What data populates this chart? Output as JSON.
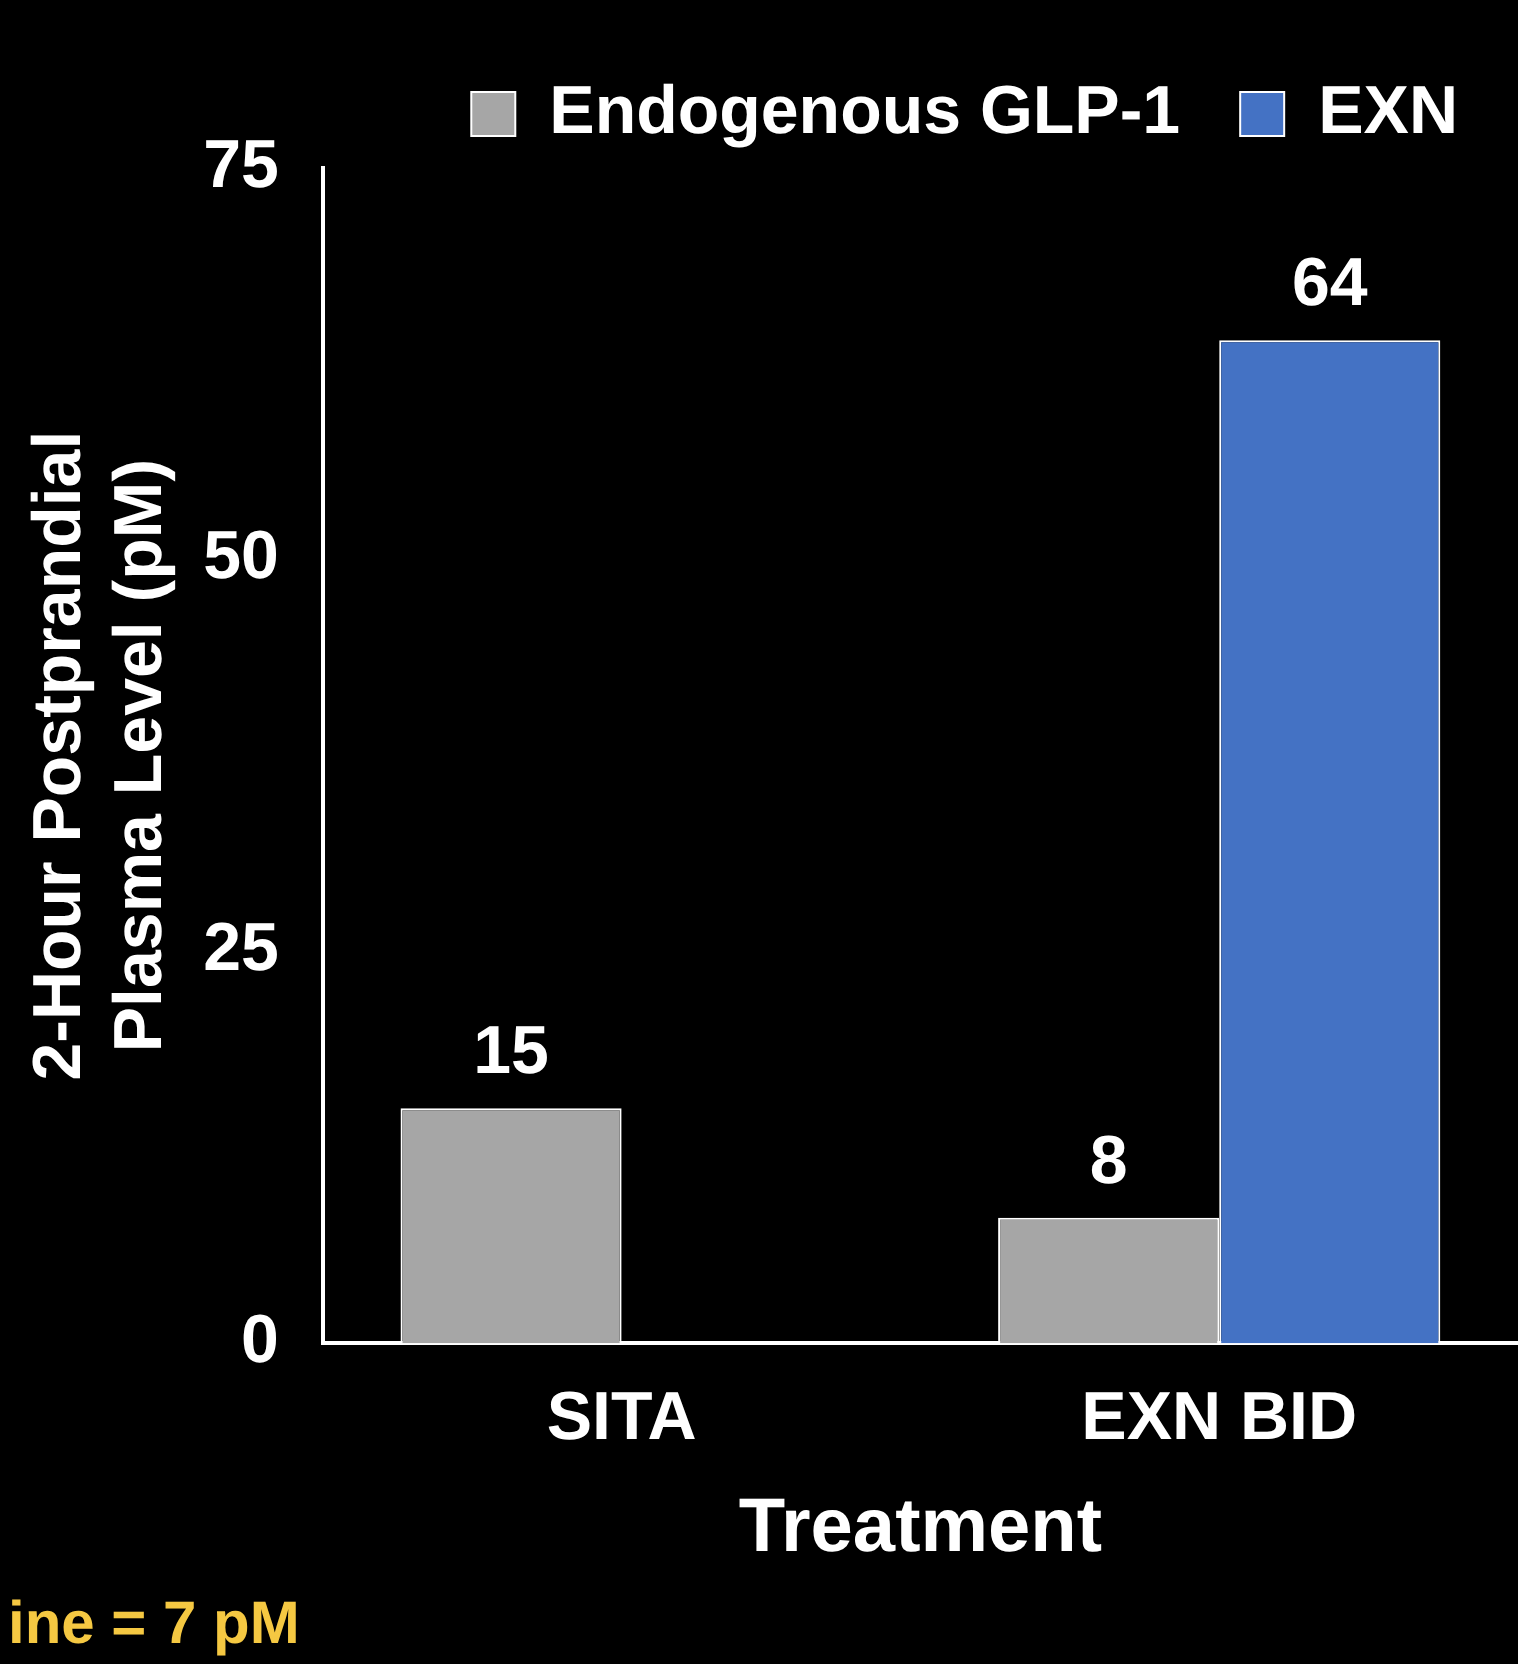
{
  "chart_data": {
    "type": "bar",
    "xlabel": "Treatment",
    "ylabel": "2-Hour Postprandial\nPlasma Level (pM)",
    "categories": [
      "SITA",
      "EXN BID"
    ],
    "series": [
      {
        "name": "Endogenous GLP-1",
        "color": "#a6a6a6",
        "values": [
          15,
          8
        ]
      },
      {
        "name": "EXN",
        "color": "#4472c4",
        "values": [
          null,
          64
        ]
      }
    ],
    "ylim": [
      0,
      75
    ],
    "yticks": [
      0,
      25,
      50,
      75
    ],
    "grid": false,
    "legend": "top",
    "data_labels": true,
    "annotations": [
      "ine = 7 pM"
    ]
  }
}
